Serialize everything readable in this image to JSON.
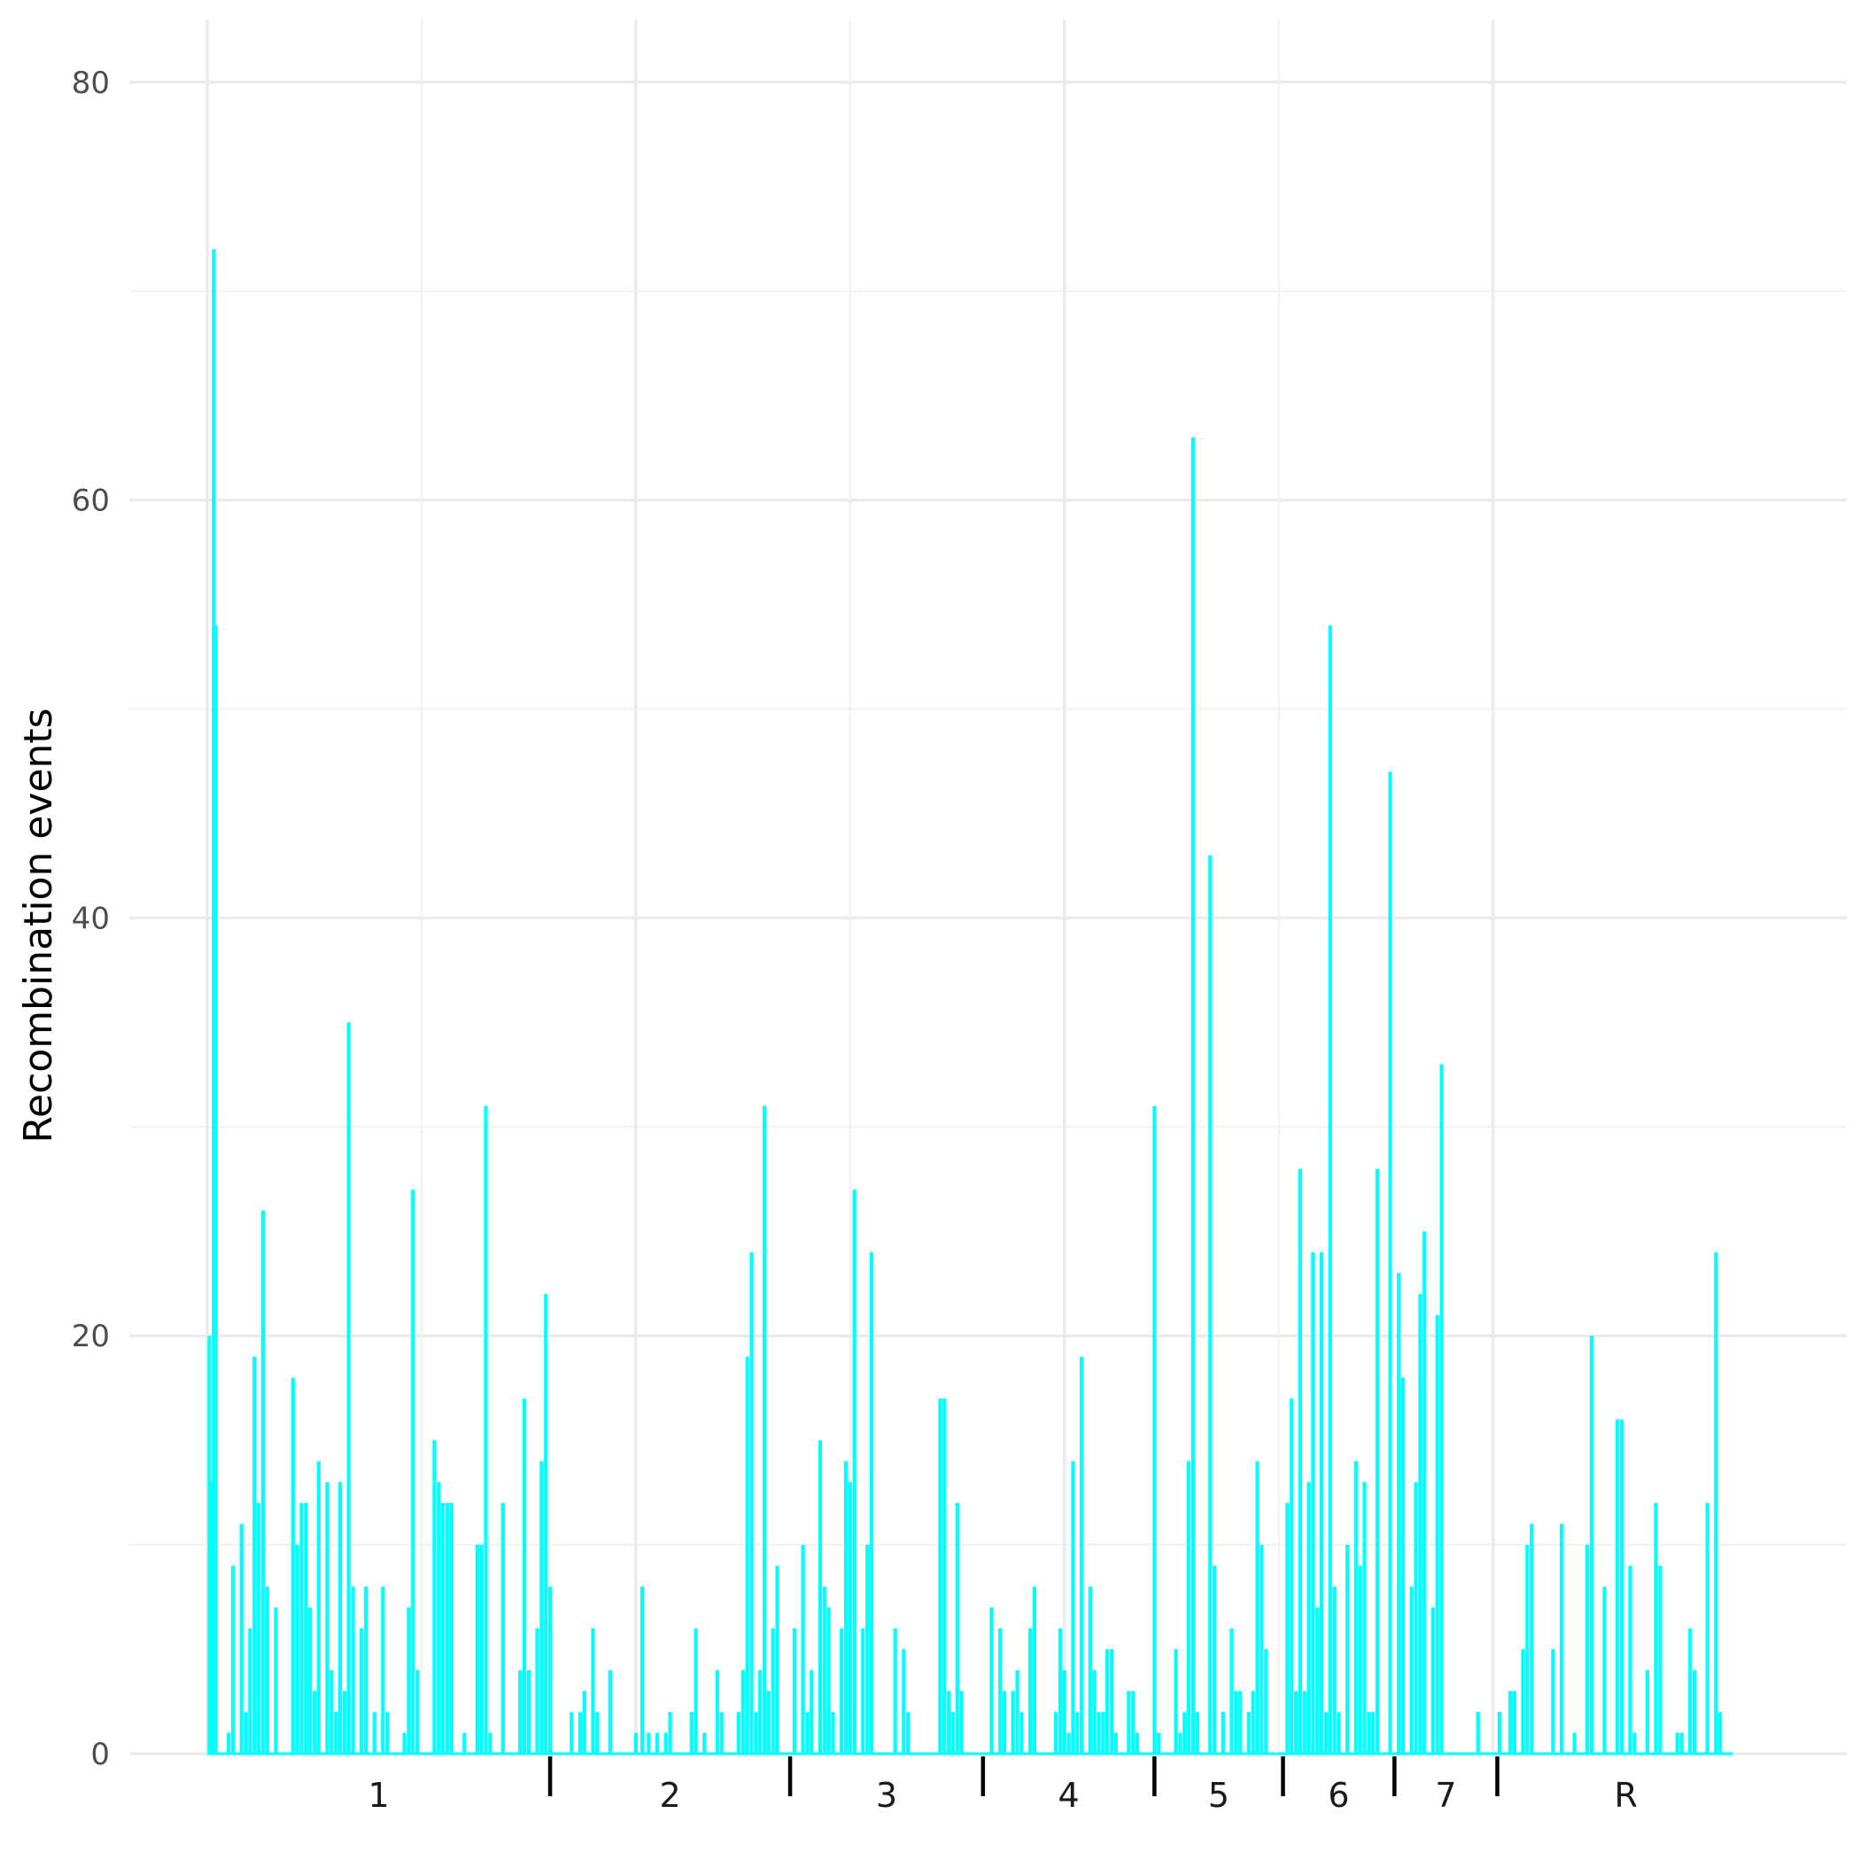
{
  "chart_data": {
    "type": "bar",
    "title": "",
    "xlabel": "",
    "ylabel": "Recombination events",
    "ylim": [
      0,
      83
    ],
    "y_ticks": [
      0,
      20,
      40,
      60,
      80
    ],
    "y_tick_labels": [
      "0",
      "20",
      "40",
      "60",
      "80"
    ],
    "grid": true,
    "legend": "none",
    "bar_color": "#00FFFF",
    "categories": [
      "1",
      "2",
      "3",
      "4",
      "5",
      "6",
      "7",
      "R"
    ],
    "x_range": [
      0,
      72
    ],
    "group_boundaries": [
      16,
      27.2,
      36.2,
      44.2,
      50.2,
      55.4,
      60.2
    ],
    "group_label_positions": [
      8,
      21.6,
      31.7,
      40.2,
      47.2,
      52.8,
      57.8,
      66.2
    ],
    "series": [
      {
        "points": [
          [
            0.1,
            20
          ],
          [
            0.2,
            13
          ],
          [
            0.3,
            72
          ],
          [
            0.4,
            54
          ],
          [
            1,
            1
          ],
          [
            1.2,
            9
          ],
          [
            1.6,
            11
          ],
          [
            1.8,
            2
          ],
          [
            2,
            6
          ],
          [
            2.2,
            19
          ],
          [
            2.4,
            12
          ],
          [
            2.6,
            26
          ],
          [
            2.8,
            8
          ],
          [
            3.2,
            7
          ],
          [
            4,
            18
          ],
          [
            4.2,
            10
          ],
          [
            4.4,
            12
          ],
          [
            4.6,
            12
          ],
          [
            4.8,
            7
          ],
          [
            5,
            3
          ],
          [
            5.2,
            14
          ],
          [
            5.6,
            13
          ],
          [
            5.8,
            4
          ],
          [
            6,
            2
          ],
          [
            6.2,
            13
          ],
          [
            6.4,
            3
          ],
          [
            6.6,
            35
          ],
          [
            6.8,
            8
          ],
          [
            7.2,
            6
          ],
          [
            7.4,
            8
          ],
          [
            7.8,
            2
          ],
          [
            8.2,
            8
          ],
          [
            8.4,
            2
          ],
          [
            9.2,
            1
          ],
          [
            9.4,
            7
          ],
          [
            9.6,
            27
          ],
          [
            9.8,
            4
          ],
          [
            10.6,
            15
          ],
          [
            10.8,
            13
          ],
          [
            11,
            12
          ],
          [
            11.2,
            12
          ],
          [
            11.4,
            12
          ],
          [
            12,
            1
          ],
          [
            12.6,
            10
          ],
          [
            12.8,
            10
          ],
          [
            13,
            31
          ],
          [
            13.2,
            1
          ],
          [
            13.8,
            12
          ],
          [
            14.6,
            4
          ],
          [
            14.8,
            17
          ],
          [
            15,
            4
          ],
          [
            15.4,
            6
          ],
          [
            15.6,
            14
          ],
          [
            15.8,
            22
          ],
          [
            16,
            8
          ],
          [
            17,
            2
          ],
          [
            17.4,
            2
          ],
          [
            17.6,
            3
          ],
          [
            18,
            6
          ],
          [
            18.2,
            2
          ],
          [
            18.8,
            4
          ],
          [
            20,
            1
          ],
          [
            20.3,
            8
          ],
          [
            20.6,
            1
          ],
          [
            21,
            1
          ],
          [
            21.4,
            1
          ],
          [
            21.6,
            2
          ],
          [
            22.6,
            2
          ],
          [
            22.8,
            6
          ],
          [
            23.2,
            1
          ],
          [
            23.8,
            4
          ],
          [
            24,
            2
          ],
          [
            24.8,
            2
          ],
          [
            25,
            4
          ],
          [
            25.2,
            19
          ],
          [
            25.4,
            24
          ],
          [
            25.6,
            2
          ],
          [
            25.8,
            4
          ],
          [
            26,
            31
          ],
          [
            26.2,
            3
          ],
          [
            26.4,
            6
          ],
          [
            26.6,
            9
          ],
          [
            27.4,
            6
          ],
          [
            27.8,
            10
          ],
          [
            28,
            2
          ],
          [
            28.2,
            4
          ],
          [
            28.6,
            15
          ],
          [
            28.8,
            8
          ],
          [
            29,
            7
          ],
          [
            29.2,
            2
          ],
          [
            29.6,
            6
          ],
          [
            29.8,
            14
          ],
          [
            30,
            13
          ],
          [
            30.2,
            27
          ],
          [
            30.6,
            6
          ],
          [
            30.8,
            10
          ],
          [
            31,
            24
          ],
          [
            32.1,
            6
          ],
          [
            32.5,
            5
          ],
          [
            32.7,
            2
          ],
          [
            34.2,
            17
          ],
          [
            34.4,
            17
          ],
          [
            34.6,
            3
          ],
          [
            34.8,
            2
          ],
          [
            35,
            12
          ],
          [
            35.2,
            3
          ],
          [
            36.6,
            7
          ],
          [
            37,
            6
          ],
          [
            37.2,
            3
          ],
          [
            37.6,
            3
          ],
          [
            37.8,
            4
          ],
          [
            38,
            2
          ],
          [
            38.4,
            6
          ],
          [
            38.6,
            8
          ],
          [
            39.6,
            2
          ],
          [
            39.8,
            6
          ],
          [
            40,
            4
          ],
          [
            40.2,
            1
          ],
          [
            40.4,
            14
          ],
          [
            40.6,
            2
          ],
          [
            40.8,
            19
          ],
          [
            41.2,
            8
          ],
          [
            41.4,
            4
          ],
          [
            41.6,
            2
          ],
          [
            41.8,
            2
          ],
          [
            42,
            5
          ],
          [
            42.2,
            5
          ],
          [
            42.4,
            1
          ],
          [
            43,
            3
          ],
          [
            43.2,
            3
          ],
          [
            43.4,
            1
          ],
          [
            44.2,
            31
          ],
          [
            44.4,
            1
          ],
          [
            45.2,
            5
          ],
          [
            45.4,
            1
          ],
          [
            45.6,
            2
          ],
          [
            45.8,
            14
          ],
          [
            46,
            63
          ],
          [
            46.2,
            2
          ],
          [
            46.8,
            43
          ],
          [
            47,
            9
          ],
          [
            47.4,
            2
          ],
          [
            47.8,
            6
          ],
          [
            48,
            3
          ],
          [
            48.2,
            3
          ],
          [
            48.6,
            2
          ],
          [
            48.8,
            3
          ],
          [
            49,
            14
          ],
          [
            49.2,
            10
          ],
          [
            49.4,
            5
          ],
          [
            50.4,
            12
          ],
          [
            50.6,
            17
          ],
          [
            50.8,
            3
          ],
          [
            51,
            28
          ],
          [
            51.2,
            3
          ],
          [
            51.4,
            13
          ],
          [
            51.6,
            24
          ],
          [
            51.8,
            7
          ],
          [
            52,
            24
          ],
          [
            52.2,
            2
          ],
          [
            52.4,
            54
          ],
          [
            52.6,
            8
          ],
          [
            52.8,
            2
          ],
          [
            53.2,
            10
          ],
          [
            53.6,
            14
          ],
          [
            53.8,
            9
          ],
          [
            54,
            13
          ],
          [
            54.2,
            2
          ],
          [
            54.4,
            2
          ],
          [
            54.6,
            28
          ],
          [
            55.2,
            47
          ],
          [
            55.6,
            23
          ],
          [
            55.8,
            18
          ],
          [
            56.2,
            8
          ],
          [
            56.4,
            13
          ],
          [
            56.6,
            22
          ],
          [
            56.8,
            25
          ],
          [
            57.2,
            7
          ],
          [
            57.4,
            21
          ],
          [
            57.6,
            33
          ],
          [
            59.3,
            2
          ],
          [
            60.3,
            2
          ],
          [
            60.8,
            3
          ],
          [
            61,
            3
          ],
          [
            61.4,
            5
          ],
          [
            61.6,
            10
          ],
          [
            61.8,
            11
          ],
          [
            62.8,
            5
          ],
          [
            63.2,
            11
          ],
          [
            63.8,
            1
          ],
          [
            64.4,
            10
          ],
          [
            64.6,
            20
          ],
          [
            65.2,
            8
          ],
          [
            65.8,
            16
          ],
          [
            66,
            16
          ],
          [
            66.4,
            9
          ],
          [
            66.6,
            1
          ],
          [
            67.2,
            4
          ],
          [
            67.6,
            12
          ],
          [
            67.8,
            9
          ],
          [
            68.6,
            1
          ],
          [
            68.8,
            1
          ],
          [
            69.2,
            6
          ],
          [
            69.4,
            4
          ],
          [
            70,
            12
          ],
          [
            70.4,
            24
          ],
          [
            70.6,
            2
          ]
        ]
      }
    ]
  }
}
